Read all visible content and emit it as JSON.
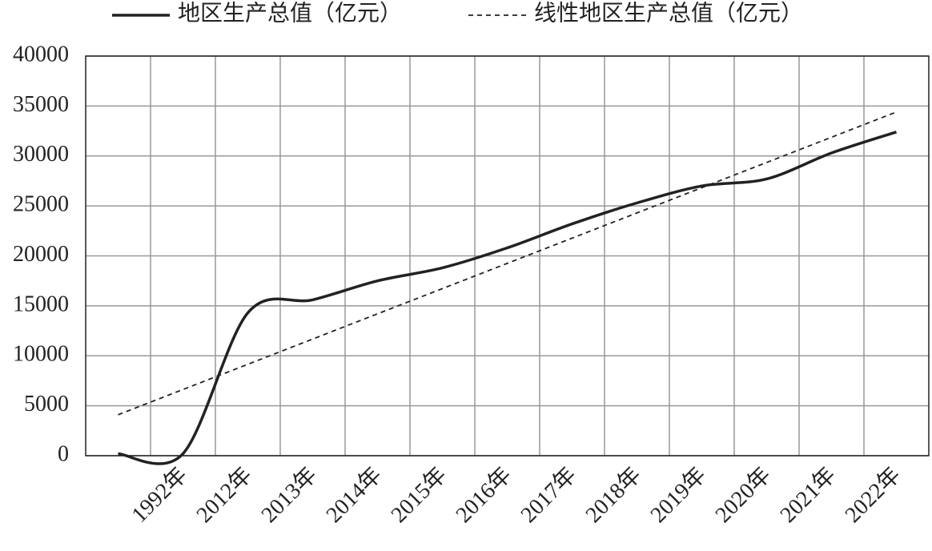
{
  "chart_data": {
    "type": "line",
    "categories": [
      null,
      "1992年",
      "2012年",
      "2013年",
      "2014年",
      "2015年",
      "2016年",
      "2017年",
      "2018年",
      "2019年",
      "2020年",
      "2021年",
      "2022年"
    ],
    "series": [
      {
        "name": "地区生产总值（亿元）",
        "color": "#222222",
        "line_style": "solid",
        "smooth": true,
        "values": [
          200,
          200,
          14300,
          15600,
          17500,
          18800,
          20800,
          23200,
          25300,
          27000,
          27700,
          30300,
          32400
        ]
      },
      {
        "name": "线性地区生产总值（亿元）",
        "color": "#222222",
        "line_style": "dashed",
        "smooth": false,
        "values": [
          4100,
          6625,
          9150,
          11675,
          14200,
          16725,
          19250,
          21775,
          24300,
          26825,
          29350,
          31875,
          34400
        ]
      }
    ],
    "ylim": [
      0,
      40000
    ],
    "yticks": [
      0,
      5000,
      10000,
      15000,
      20000,
      25000,
      30000,
      35000,
      40000
    ],
    "grid": true,
    "legend": "top"
  }
}
